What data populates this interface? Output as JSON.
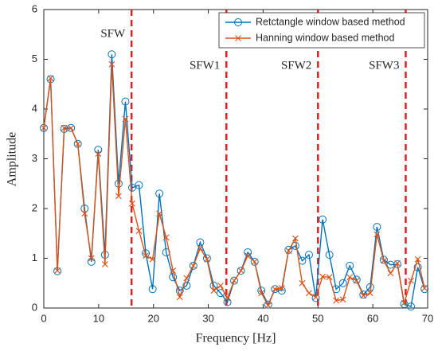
{
  "chart_data": {
    "type": "line",
    "xlabel": "Frequency [Hz]",
    "ylabel": "Amplitude",
    "x": [
      0,
      1.24,
      2.48,
      3.72,
      4.96,
      6.2,
      7.44,
      8.68,
      9.92,
      11.16,
      12.4,
      13.64,
      14.88,
      16.12,
      17.36,
      18.6,
      19.84,
      21.08,
      22.32,
      23.56,
      24.8,
      26.04,
      27.28,
      28.52,
      29.76,
      31,
      32.24,
      33.48,
      34.72,
      35.96,
      37.2,
      38.44,
      39.68,
      40.92,
      42.16,
      43.4,
      44.64,
      45.88,
      47.12,
      48.36,
      49.6,
      50.84,
      52.08,
      53.32,
      54.56,
      55.8,
      57.04,
      58.28,
      59.52,
      60.76,
      62,
      63.24,
      64.48,
      65.72,
      66.96,
      68.2,
      69.44
    ],
    "series": [
      {
        "name": "Retctangle window based method",
        "color": "#0072BD",
        "marker": "circle",
        "values": [
          3.62,
          4.6,
          0.74,
          3.6,
          3.62,
          3.3,
          2.0,
          0.93,
          3.18,
          1.07,
          5.1,
          2.5,
          4.15,
          2.42,
          2.47,
          1.1,
          0.38,
          2.3,
          1.12,
          0.62,
          0.35,
          0.45,
          0.85,
          1.32,
          1.0,
          0.45,
          0.3,
          0.12,
          0.55,
          0.75,
          1.12,
          0.93,
          0.35,
          0.07,
          0.38,
          0.35,
          1.17,
          1.25,
          0.95,
          1.07,
          0.2,
          1.78,
          1.07,
          0.38,
          0.5,
          0.85,
          0.57,
          0.27,
          0.42,
          1.63,
          0.97,
          0.87,
          0.88,
          0.08,
          0.03,
          0.82,
          0.38
        ]
      },
      {
        "name": "Hanning window based method",
        "color": "#D95319",
        "marker": "x",
        "values": [
          3.62,
          4.62,
          0.75,
          3.62,
          3.62,
          3.3,
          1.9,
          1.0,
          3.1,
          0.88,
          4.9,
          2.25,
          3.8,
          2.1,
          1.55,
          1.05,
          0.98,
          1.9,
          1.42,
          0.75,
          0.22,
          0.6,
          0.85,
          1.2,
          0.98,
          0.35,
          0.45,
          0.2,
          0.55,
          0.75,
          1.05,
          0.93,
          0.3,
          0.05,
          0.38,
          0.4,
          1.15,
          1.4,
          0.5,
          0.3,
          0.22,
          0.63,
          0.62,
          0.15,
          0.17,
          0.62,
          0.55,
          0.25,
          0.3,
          1.48,
          0.95,
          0.7,
          0.9,
          0.1,
          0.55,
          0.98,
          0.4
        ]
      }
    ],
    "vlines": [
      {
        "x": 16,
        "label": "SFW"
      },
      {
        "x": 33.3,
        "label": "SFW1"
      },
      {
        "x": 50,
        "label": "SFW2"
      },
      {
        "x": 66,
        "label": "SFW3"
      }
    ],
    "vline_color": "#e02020",
    "xlim": [
      0,
      70
    ],
    "xticks": [
      0,
      10,
      20,
      30,
      40,
      50,
      60,
      70
    ],
    "ylim": [
      0,
      6
    ],
    "yticks": [
      0,
      1,
      2,
      3,
      4,
      5,
      6
    ],
    "grid": false,
    "legend": "upper right"
  }
}
